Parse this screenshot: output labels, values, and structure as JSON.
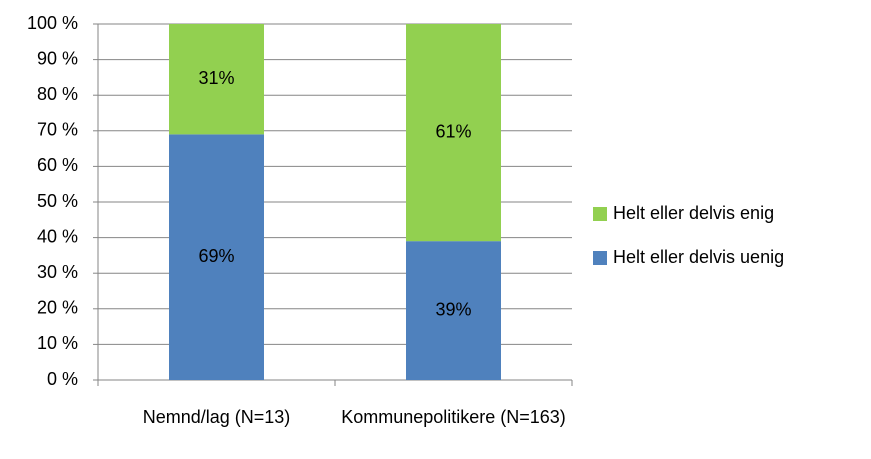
{
  "chart_data": {
    "type": "stacked_bar",
    "categories": [
      "Nemnd/lag (N=13)",
      "Kommunepolitikere (N=163)"
    ],
    "series": [
      {
        "name": "Helt eller delvis uenig",
        "color": "#4f81bd",
        "values": [
          69,
          39
        ],
        "value_labels": [
          "69%",
          "39%"
        ]
      },
      {
        "name": "Helt eller delvis enig",
        "color": "#92d050",
        "values": [
          31,
          61
        ],
        "value_labels": [
          "31%",
          "61%"
        ]
      }
    ],
    "ylim": [
      0,
      100
    ],
    "yticks": [
      {
        "value": 0,
        "label": "0 %"
      },
      {
        "value": 10,
        "label": "10 %"
      },
      {
        "value": 20,
        "label": "20 %"
      },
      {
        "value": 30,
        "label": "30 %"
      },
      {
        "value": 40,
        "label": "40 %"
      },
      {
        "value": 50,
        "label": "50 %"
      },
      {
        "value": 60,
        "label": "60 %"
      },
      {
        "value": 70,
        "label": "70 %"
      },
      {
        "value": 80,
        "label": "80 %"
      },
      {
        "value": 90,
        "label": "90 %"
      },
      {
        "value": 100,
        "label": "100 %"
      }
    ],
    "grid": true,
    "legend": "right"
  }
}
